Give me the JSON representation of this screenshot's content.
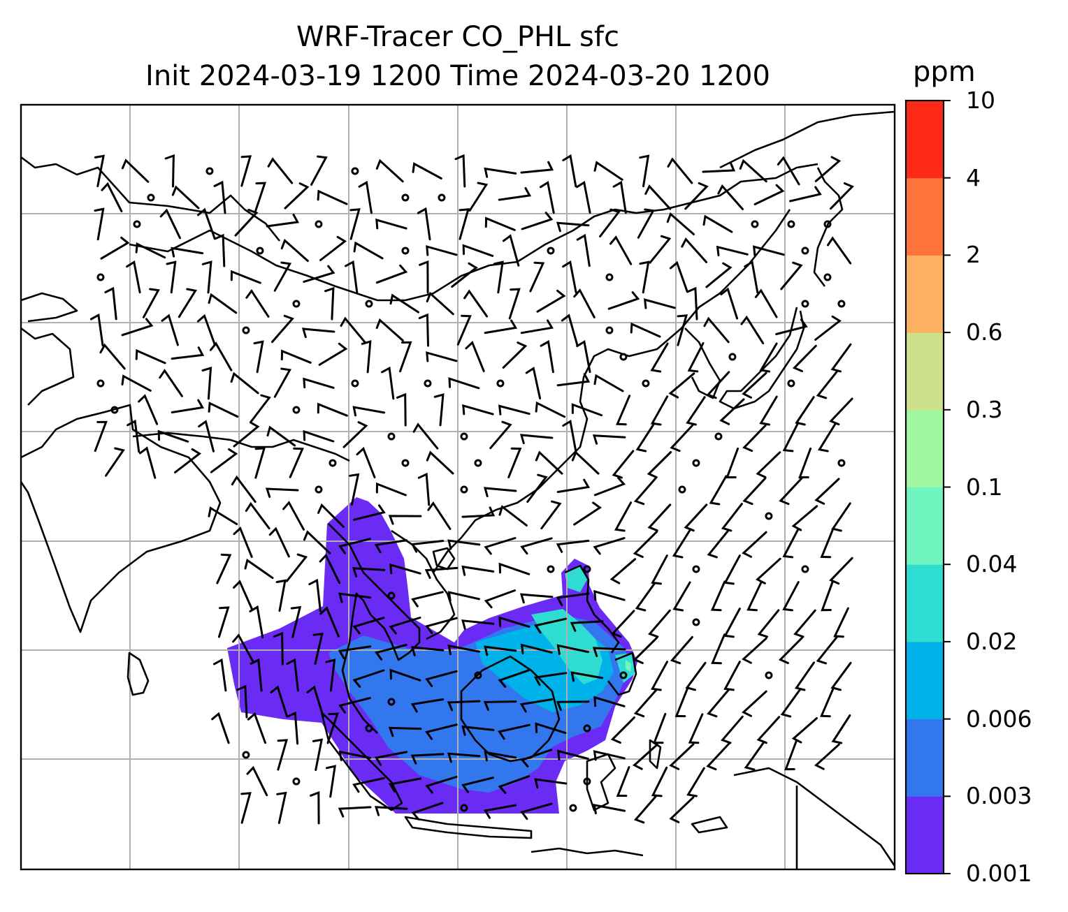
{
  "title": {
    "line1": "WRF-Tracer CO_PHL sfc",
    "line2": "Init 2024-03-19 1200 Time 2024-03-20 1200"
  },
  "colorbar": {
    "unit": "ppm",
    "ticks": [
      "0.001",
      "0.003",
      "0.006",
      "0.02",
      "0.04",
      "0.1",
      "0.3",
      "0.6",
      "2",
      "4",
      "10"
    ],
    "colors": [
      "#6a2bf5",
      "#3377ef",
      "#00b2ea",
      "#2fdcd2",
      "#6ef5c0",
      "#a0f7a0",
      "#cfe08a",
      "#fdb062",
      "#fd7339",
      "#fd2a18"
    ]
  },
  "map": {
    "gridlines": true,
    "gridline_color": "#b0b0b0",
    "coastline_color": "#000000",
    "wind_barbs": true,
    "tracer_field": "CO_PHL"
  }
}
